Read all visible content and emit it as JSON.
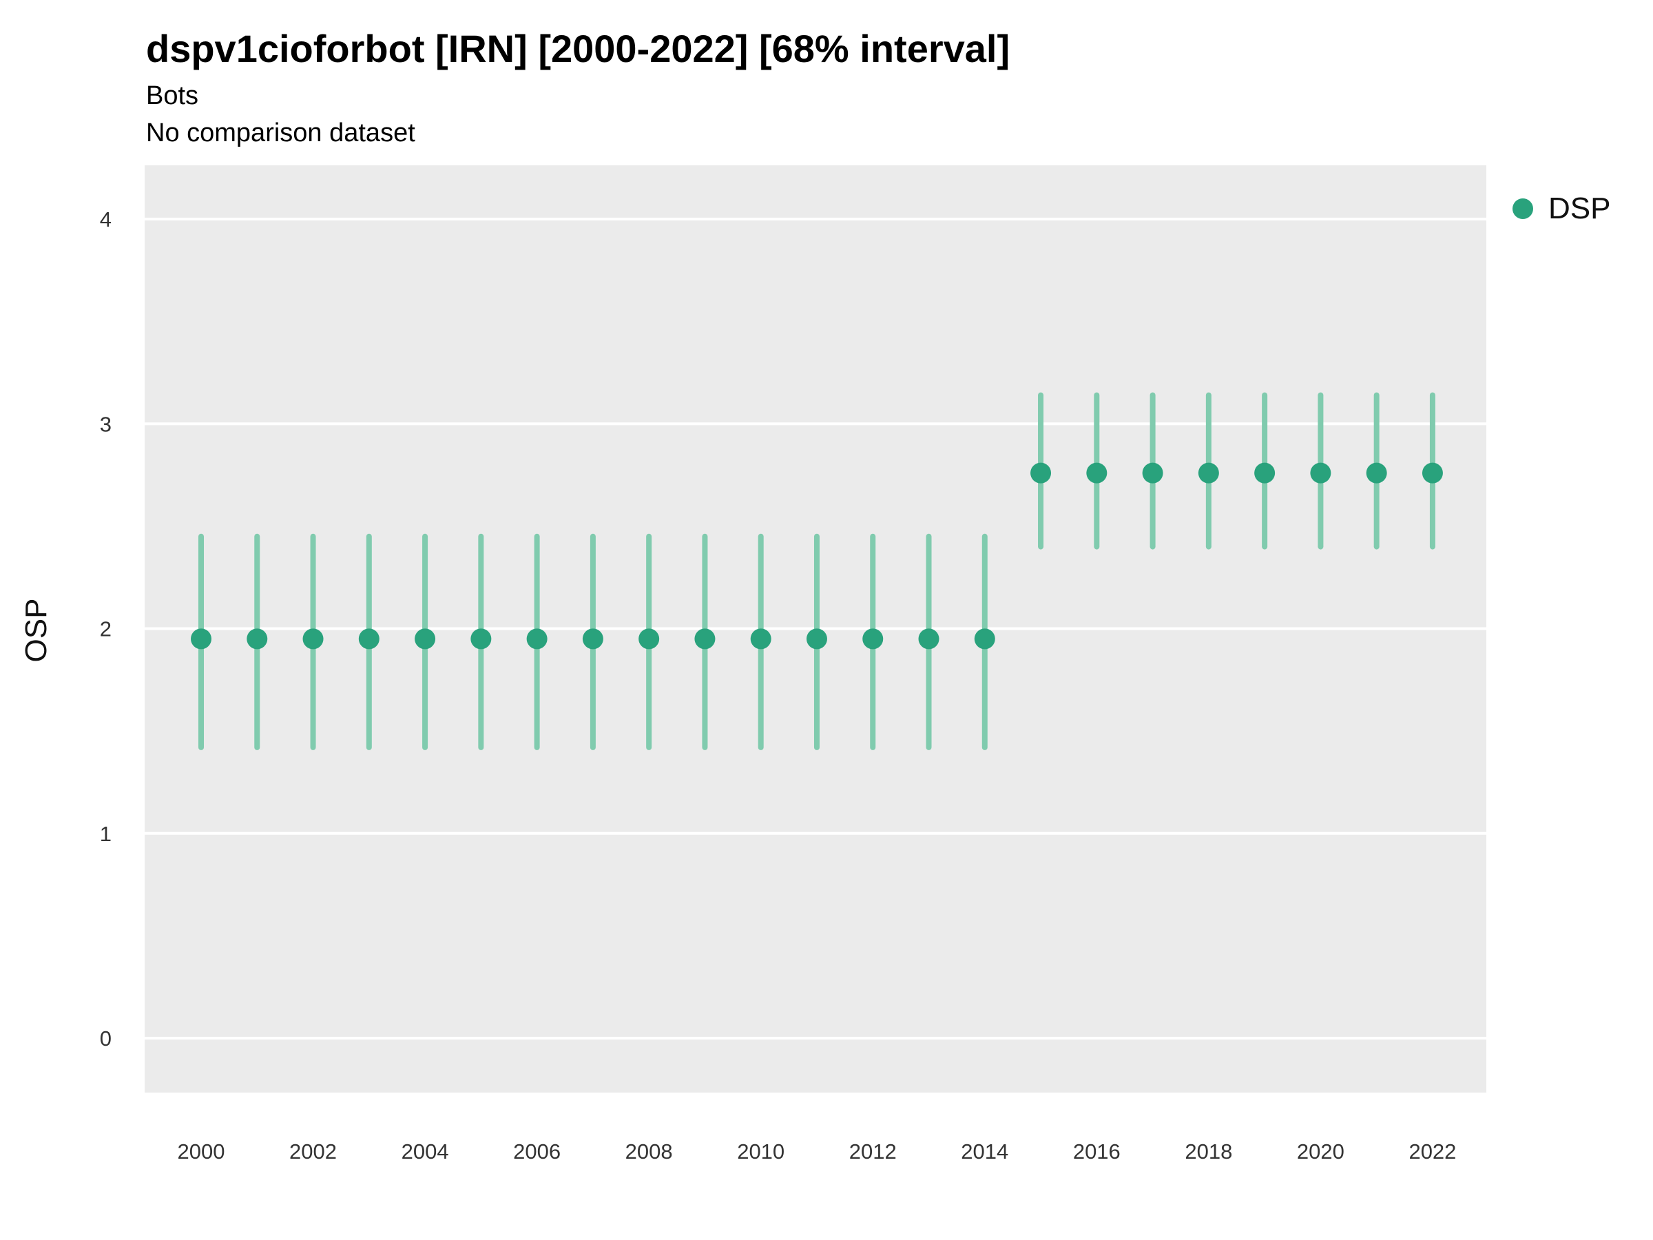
{
  "header": {
    "title": "dspv1cioforbot [IRN] [2000-2022] [68% interval]",
    "subtitle": "Bots",
    "subtitle2": "No comparison dataset"
  },
  "legend": {
    "items": [
      {
        "label": "DSP",
        "color": "#29a27c"
      }
    ]
  },
  "colors": {
    "panel_bg": "#ebebeb",
    "gridline": "#ffffff",
    "point": "#29a27c",
    "interval": "#80cbae",
    "tick_text": "#333333"
  },
  "chart_data": {
    "type": "scatter",
    "title": "dspv1cioforbot [IRN] [2000-2022] [68% interval]",
    "subtitle": "Bots",
    "subtitle2": "No comparison dataset",
    "xlabel": "",
    "ylabel": "OSP",
    "legend_position": "right",
    "grid": true,
    "ylim": [
      -0.3,
      4.3
    ],
    "yticks": [
      0,
      1,
      2,
      3,
      4
    ],
    "xticks": [
      2000,
      2002,
      2004,
      2006,
      2008,
      2010,
      2012,
      2014,
      2016,
      2018,
      2020,
      2022
    ],
    "x": [
      2000,
      2001,
      2002,
      2003,
      2004,
      2005,
      2006,
      2007,
      2008,
      2009,
      2010,
      2011,
      2012,
      2013,
      2014,
      2015,
      2016,
      2017,
      2018,
      2019,
      2020,
      2021,
      2022
    ],
    "series": [
      {
        "name": "DSP",
        "values": [
          1.95,
          1.95,
          1.95,
          1.95,
          1.95,
          1.95,
          1.95,
          1.95,
          1.95,
          1.95,
          1.95,
          1.95,
          1.95,
          1.95,
          1.95,
          2.76,
          2.76,
          2.76,
          2.76,
          2.76,
          2.76,
          2.76,
          2.76
        ],
        "lower": [
          1.42,
          1.42,
          1.42,
          1.42,
          1.42,
          1.42,
          1.42,
          1.42,
          1.42,
          1.42,
          1.42,
          1.42,
          1.42,
          1.42,
          1.42,
          2.4,
          2.4,
          2.4,
          2.4,
          2.4,
          2.4,
          2.4,
          2.4
        ],
        "upper": [
          2.45,
          2.45,
          2.45,
          2.45,
          2.45,
          2.45,
          2.45,
          2.45,
          2.45,
          2.45,
          2.45,
          2.45,
          2.45,
          2.45,
          2.45,
          3.14,
          3.14,
          3.14,
          3.14,
          3.14,
          3.14,
          3.14,
          3.14
        ]
      }
    ]
  }
}
